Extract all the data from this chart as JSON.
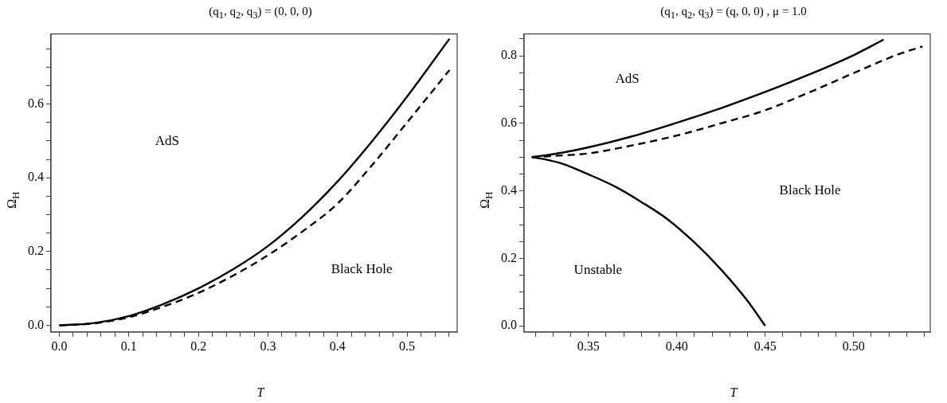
{
  "chart_data": [
    {
      "type": "line",
      "title": "(q$_{1}$, q$_{2}$, q$_{3}$) = (0, 0, 0)",
      "xlabel": "T",
      "ylabel": "Ω$_{H}$",
      "legend": false,
      "grid": false,
      "marker": "none",
      "xlim": [
        -0.012,
        0.572
      ],
      "ylim": [
        -0.018,
        0.79
      ],
      "xticks": [
        {
          "value": 0,
          "label": "0.0"
        },
        {
          "value": 0.02,
          "label": null
        },
        {
          "value": 0.04,
          "label": null
        },
        {
          "value": 0.06,
          "label": null
        },
        {
          "value": 0.08,
          "label": null
        },
        {
          "value": 0.1,
          "label": "0.1"
        },
        {
          "value": 0.12,
          "label": null
        },
        {
          "value": 0.14,
          "label": null
        },
        {
          "value": 0.16,
          "label": null
        },
        {
          "value": 0.18,
          "label": null
        },
        {
          "value": 0.2,
          "label": "0.2"
        },
        {
          "value": 0.22,
          "label": null
        },
        {
          "value": 0.24,
          "label": null
        },
        {
          "value": 0.26,
          "label": null
        },
        {
          "value": 0.28,
          "label": null
        },
        {
          "value": 0.3,
          "label": "0.3"
        },
        {
          "value": 0.32,
          "label": null
        },
        {
          "value": 0.34,
          "label": null
        },
        {
          "value": 0.36,
          "label": null
        },
        {
          "value": 0.38,
          "label": null
        },
        {
          "value": 0.4,
          "label": "0.4"
        },
        {
          "value": 0.42,
          "label": null
        },
        {
          "value": 0.44,
          "label": null
        },
        {
          "value": 0.46,
          "label": null
        },
        {
          "value": 0.48,
          "label": null
        },
        {
          "value": 0.5,
          "label": "0.5"
        },
        {
          "value": 0.52,
          "label": null
        },
        {
          "value": 0.54,
          "label": null
        },
        {
          "value": 0.56,
          "label": null
        }
      ],
      "yticks": [
        {
          "value": 0,
          "label": "0.0"
        },
        {
          "value": 0.05,
          "label": null
        },
        {
          "value": 0.1,
          "label": null
        },
        {
          "value": 0.15,
          "label": null
        },
        {
          "value": 0.2,
          "label": "0.2"
        },
        {
          "value": 0.25,
          "label": null
        },
        {
          "value": 0.3,
          "label": null
        },
        {
          "value": 0.35,
          "label": null
        },
        {
          "value": 0.4,
          "label": "0.4"
        },
        {
          "value": 0.45,
          "label": null
        },
        {
          "value": 0.5,
          "label": null
        },
        {
          "value": 0.55,
          "label": null
        },
        {
          "value": 0.6,
          "label": "0.6"
        },
        {
          "value": 0.65,
          "label": null
        },
        {
          "value": 0.7,
          "label": null
        },
        {
          "value": 0.75,
          "label": null
        }
      ],
      "series": [
        {
          "color": "#000000",
          "line_style": "solid",
          "x": [
            0,
            0.05,
            0.1,
            0.15,
            0.2,
            0.25,
            0.3,
            0.35,
            0.4,
            0.45,
            0.5,
            0.561
          ],
          "values": [
            0,
            0.006,
            0.025,
            0.058,
            0.1,
            0.152,
            0.215,
            0.295,
            0.39,
            0.5,
            0.62,
            0.777
          ]
        },
        {
          "color": "#000000",
          "line_style": "dashed",
          "x": [
            0,
            0.05,
            0.1,
            0.15,
            0.2,
            0.25,
            0.3,
            0.35,
            0.4,
            0.45,
            0.5,
            0.561
          ],
          "values": [
            0,
            0.005,
            0.022,
            0.051,
            0.088,
            0.135,
            0.19,
            0.255,
            0.33,
            0.435,
            0.55,
            0.692
          ]
        }
      ],
      "annotations": [
        "AdS",
        "Black Hole"
      ]
    },
    {
      "type": "line",
      "title": "(q$_{1}$, q$_{2}$, q$_{3}$) = (q, 0, 0) , μ = 1.0",
      "xlabel": "T",
      "ylabel": "Ω$_{H}$",
      "legend": false,
      "grid": false,
      "marker": "none",
      "xlim": [
        0.3136,
        0.5434
      ],
      "ylim": [
        -0.018,
        0.865
      ],
      "xticks": [
        {
          "value": 0.32,
          "label": null
        },
        {
          "value": 0.33,
          "label": null
        },
        {
          "value": 0.34,
          "label": null
        },
        {
          "value": 0.35,
          "label": "0.35"
        },
        {
          "value": 0.36,
          "label": null
        },
        {
          "value": 0.37,
          "label": null
        },
        {
          "value": 0.38,
          "label": null
        },
        {
          "value": 0.39,
          "label": null
        },
        {
          "value": 0.4,
          "label": "0.40"
        },
        {
          "value": 0.41,
          "label": null
        },
        {
          "value": 0.42,
          "label": null
        },
        {
          "value": 0.43,
          "label": null
        },
        {
          "value": 0.44,
          "label": null
        },
        {
          "value": 0.45,
          "label": "0.45"
        },
        {
          "value": 0.46,
          "label": null
        },
        {
          "value": 0.47,
          "label": null
        },
        {
          "value": 0.48,
          "label": null
        },
        {
          "value": 0.49,
          "label": null
        },
        {
          "value": 0.5,
          "label": "0.50"
        },
        {
          "value": 0.51,
          "label": null
        },
        {
          "value": 0.52,
          "label": null
        },
        {
          "value": 0.53,
          "label": null
        },
        {
          "value": 0.54,
          "label": null
        }
      ],
      "yticks": [
        {
          "value": 0,
          "label": "0.0"
        },
        {
          "value": 0.05,
          "label": null
        },
        {
          "value": 0.1,
          "label": null
        },
        {
          "value": 0.15,
          "label": null
        },
        {
          "value": 0.2,
          "label": "0.2"
        },
        {
          "value": 0.25,
          "label": null
        },
        {
          "value": 0.3,
          "label": null
        },
        {
          "value": 0.35,
          "label": null
        },
        {
          "value": 0.4,
          "label": "0.4"
        },
        {
          "value": 0.45,
          "label": null
        },
        {
          "value": 0.5,
          "label": null
        },
        {
          "value": 0.55,
          "label": null
        },
        {
          "value": 0.6,
          "label": "0.6"
        },
        {
          "value": 0.65,
          "label": null
        },
        {
          "value": 0.7,
          "label": null
        },
        {
          "value": 0.75,
          "label": null
        },
        {
          "value": 0.8,
          "label": "0.8"
        },
        {
          "value": 0.85,
          "label": null
        }
      ],
      "series": [
        {
          "color": "#000000",
          "line_style": "solid",
          "x": [
            0.318,
            0.325,
            0.335,
            0.35,
            0.375,
            0.4,
            0.425,
            0.45,
            0.475,
            0.5,
            0.517
          ],
          "values": [
            0.5,
            0.505,
            0.513,
            0.529,
            0.562,
            0.602,
            0.645,
            0.693,
            0.745,
            0.802,
            0.848
          ]
        },
        {
          "color": "#000000",
          "line_style": "dashed",
          "x": [
            0.318,
            0.325,
            0.335,
            0.35,
            0.375,
            0.4,
            0.425,
            0.45,
            0.475,
            0.5,
            0.525,
            0.539
          ],
          "values": [
            0.5,
            0.502,
            0.505,
            0.511,
            0.535,
            0.564,
            0.6,
            0.639,
            0.692,
            0.749,
            0.804,
            0.828
          ]
        },
        {
          "color": "#000000",
          "line_style": "solid",
          "x": [
            0.318,
            0.325,
            0.335,
            0.35,
            0.365,
            0.38,
            0.395,
            0.41,
            0.425,
            0.44,
            0.45
          ],
          "values": [
            0.5,
            0.494,
            0.481,
            0.449,
            0.413,
            0.367,
            0.315,
            0.247,
            0.167,
            0.074,
            0
          ]
        }
      ],
      "annotations": [
        "AdS",
        "Black Hole",
        "Unstable"
      ]
    }
  ]
}
